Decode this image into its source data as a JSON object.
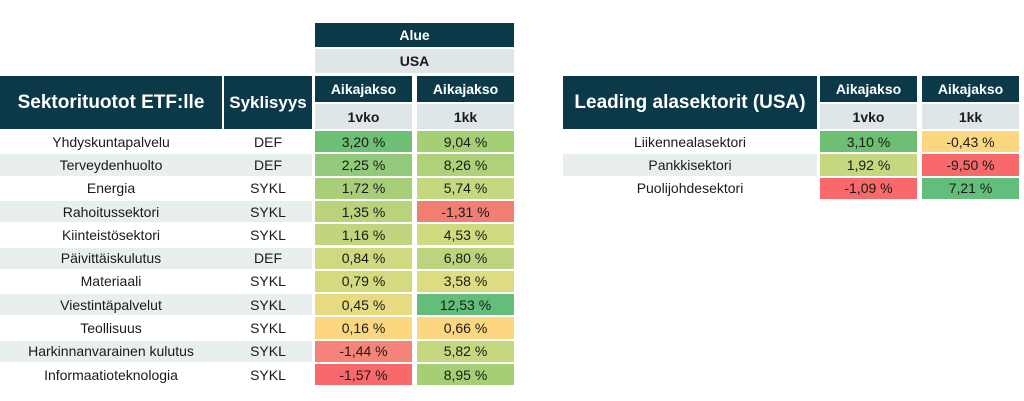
{
  "left_table": {
    "region_label": "Alue",
    "region_value": "USA",
    "title": "Sektorituotot ETF:lle",
    "cyc_header": "Syklisyys",
    "period_header": "Aikajakso",
    "col1_label": "1vko",
    "col2_label": "1kk",
    "rows": [
      {
        "name": "Yhdyskuntapalvelu",
        "cyc": "DEF",
        "v1": "3,20 %",
        "v2": "9,04 %",
        "c1": "#6dbf73",
        "c2": "#a4cf75"
      },
      {
        "name": "Terveydenhuolto",
        "cyc": "DEF",
        "v1": "2,25 %",
        "v2": "8,26 %",
        "c1": "#93c97a",
        "c2": "#aed179"
      },
      {
        "name": "Energia",
        "cyc": "SYKL",
        "v1": "1,72 %",
        "v2": "5,74 %",
        "c1": "#a8ce7a",
        "c2": "#c5d77f"
      },
      {
        "name": "Rahoitussektori",
        "cyc": "SYKL",
        "v1": "1,35 %",
        "v2": "-1,31 %",
        "c1": "#b8d37c",
        "c2": "#f07e73"
      },
      {
        "name": "Kiinteistösektori",
        "cyc": "SYKL",
        "v1": "1,16 %",
        "v2": "4,53 %",
        "c1": "#c0d57d",
        "c2": "#d2da81"
      },
      {
        "name": "Päivittäiskulutus",
        "cyc": "DEF",
        "v1": "0,84 %",
        "v2": "6,80 %",
        "c1": "#cfd980",
        "c2": "#bbd47d"
      },
      {
        "name": "Materiaali",
        "cyc": "SYKL",
        "v1": "0,79 %",
        "v2": "3,58 %",
        "c1": "#d3da80",
        "c2": "#dddc82"
      },
      {
        "name": "Viestintäpalvelut",
        "cyc": "SYKL",
        "v1": "0,45 %",
        "v2": "12,53 %",
        "c1": "#e6db80",
        "c2": "#63be7b"
      },
      {
        "name": "Teollisuus",
        "cyc": "SYKL",
        "v1": "0,16 %",
        "v2": "0,66 %",
        "c1": "#fdd77f",
        "c2": "#fdd77f"
      },
      {
        "name": "Harkinnanvarainen kulutus",
        "cyc": "SYKL",
        "v1": "-1,44 %",
        "v2": "5,82 %",
        "c1": "#f5837a",
        "c2": "#c5d77f"
      },
      {
        "name": "Informaatioteknologia",
        "cyc": "SYKL",
        "v1": "-1,57 %",
        "v2": "8,95 %",
        "c1": "#f8696b",
        "c2": "#a4cf75"
      }
    ]
  },
  "right_table": {
    "title": "Leading alasektorit (USA)",
    "period_header": "Aikajakso",
    "col1_label": "1vko",
    "col2_label": "1kk",
    "rows": [
      {
        "name": "Liikennealasektori",
        "v1": "3,10 %",
        "v2": "-0,43 %",
        "c1": "#6dbf73",
        "c2": "#fdd77f"
      },
      {
        "name": "Pankkisektori",
        "v1": "1,92 %",
        "v2": "-9,50 %",
        "c1": "#c5d77f",
        "c2": "#f8696b"
      },
      {
        "name": "Puolijohdesektori",
        "v1": "-1,09 %",
        "v2": "7,21 %",
        "c1": "#f8696b",
        "c2": "#63be7b"
      }
    ]
  }
}
